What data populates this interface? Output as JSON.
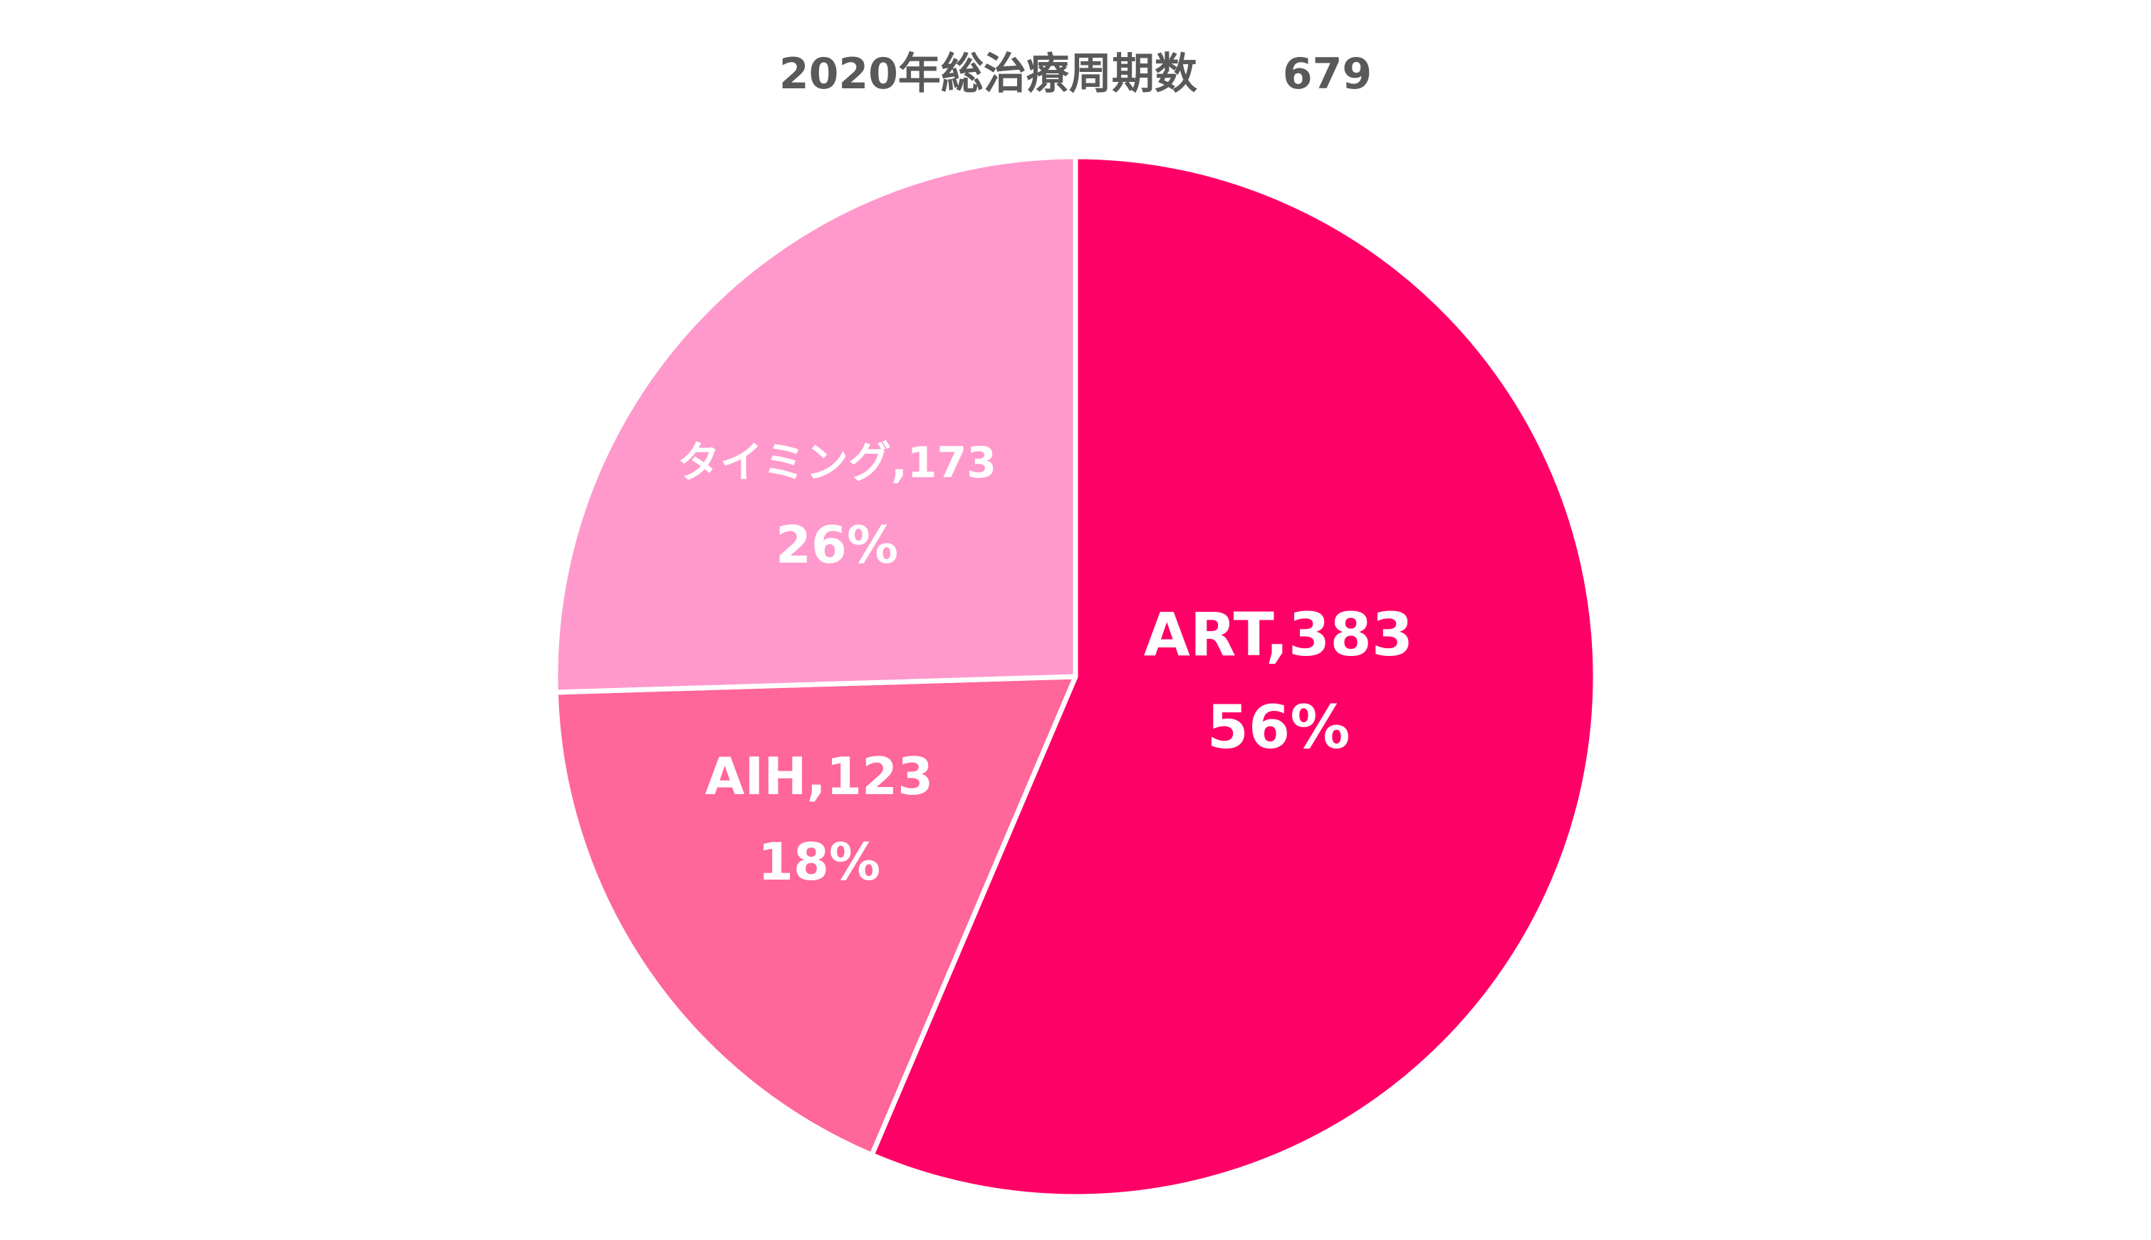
{
  "chart_data": {
    "type": "pie",
    "title": "2020年総治療周期数　　679",
    "start_angle_deg": 0,
    "direction": "clockwise",
    "slices": [
      {
        "label": "ART",
        "value": 383,
        "percent_label": "56%",
        "color": "#FF0066"
      },
      {
        "label": "AIH",
        "value": 123,
        "percent_label": "18%",
        "color": "#FF6699"
      },
      {
        "label": "タイミング",
        "value": 173,
        "percent_label": "26%",
        "color": "#FF99CC"
      }
    ]
  }
}
